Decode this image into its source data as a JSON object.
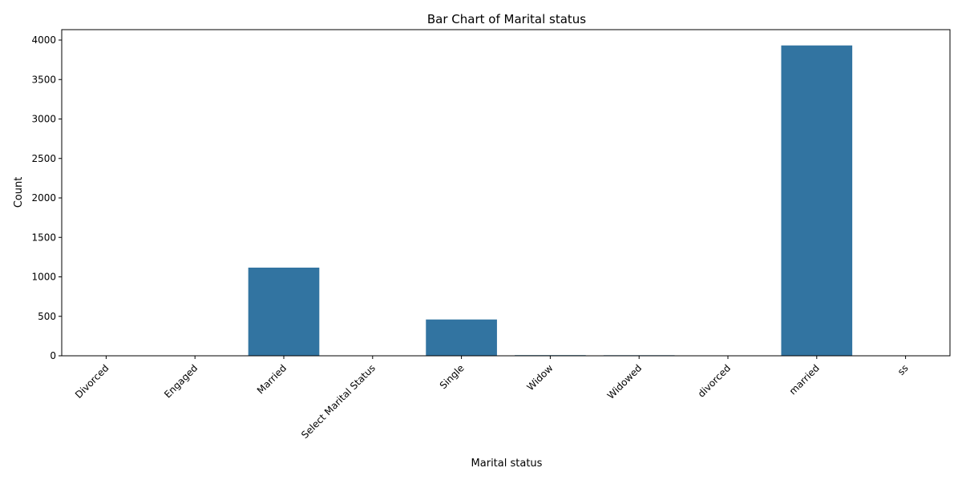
{
  "chart_data": {
    "type": "bar",
    "title": "Bar Chart of Marital status",
    "xlabel": "Marital status",
    "ylabel": "Count",
    "categories": [
      "Divorced",
      "Engaged",
      "Married",
      "Select Marital Status",
      "Single",
      "Widow",
      "Widowed",
      "divorced",
      "married",
      "ss"
    ],
    "values": [
      1,
      1,
      1117,
      1,
      460,
      8,
      7,
      5,
      3932,
      1
    ],
    "ylim": [
      0,
      4132
    ],
    "yticks": [
      0,
      500,
      1000,
      1500,
      2000,
      2500,
      3000,
      3500,
      4000
    ],
    "bar_color": "#3274a1",
    "grid": false,
    "legend": "none"
  }
}
